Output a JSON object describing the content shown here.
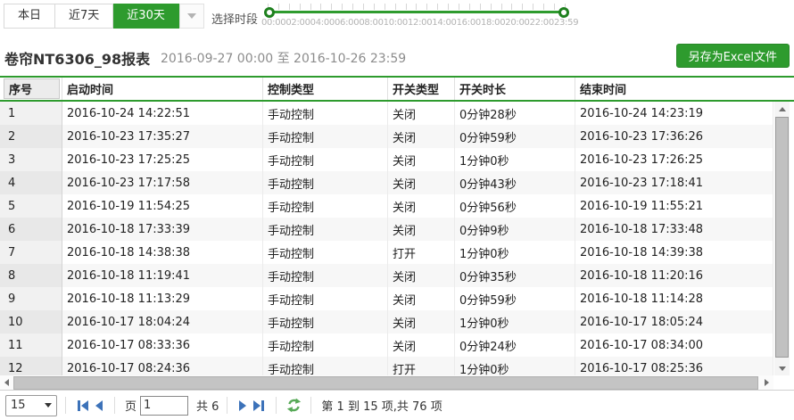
{
  "colors": {
    "accent_green": "#2e9b2e",
    "pager_arrow_blue": "#3c72b9",
    "refresh_green": "#57a957"
  },
  "toolbar": {
    "range_buttons": [
      {
        "label": "本日",
        "active": false
      },
      {
        "label": "近7天",
        "active": false
      },
      {
        "label": "近30天",
        "active": true
      }
    ],
    "time_label": "选择时段",
    "slider": {
      "start_value": "00:00",
      "end_value": "23:59",
      "tick_labels": [
        "00:00",
        "02:00",
        "04:00",
        "06:00",
        "08:00",
        "10:00",
        "12:00",
        "14:00",
        "16:00",
        "18:00",
        "20:00",
        "22:00",
        "23:59"
      ]
    }
  },
  "header": {
    "title": "卷帘NT6306_98报表",
    "date_range": "2016-09-27 00:00 至 2016-10-26 23:59",
    "excel_button_label": "另存为Excel文件"
  },
  "table": {
    "columns": [
      "序号",
      "启动时间",
      "控制类型",
      "开关类型",
      "开关时长",
      "结束时间"
    ],
    "rows": [
      [
        "1",
        "2016-10-24 14:22:51",
        "手动控制",
        "关闭",
        "0分钟28秒",
        "2016-10-24 14:23:19"
      ],
      [
        "2",
        "2016-10-23 17:35:27",
        "手动控制",
        "关闭",
        "0分钟59秒",
        "2016-10-23 17:36:26"
      ],
      [
        "3",
        "2016-10-23 17:25:25",
        "手动控制",
        "关闭",
        "1分钟0秒",
        "2016-10-23 17:26:25"
      ],
      [
        "4",
        "2016-10-23 17:17:58",
        "手动控制",
        "关闭",
        "0分钟43秒",
        "2016-10-23 17:18:41"
      ],
      [
        "5",
        "2016-10-19 11:54:25",
        "手动控制",
        "关闭",
        "0分钟56秒",
        "2016-10-19 11:55:21"
      ],
      [
        "6",
        "2016-10-18 17:33:39",
        "手动控制",
        "关闭",
        "0分钟9秒",
        "2016-10-18 17:33:48"
      ],
      [
        "7",
        "2016-10-18 14:38:38",
        "手动控制",
        "打开",
        "1分钟0秒",
        "2016-10-18 14:39:38"
      ],
      [
        "8",
        "2016-10-18 11:19:41",
        "手动控制",
        "关闭",
        "0分钟35秒",
        "2016-10-18 11:20:16"
      ],
      [
        "9",
        "2016-10-18 11:13:29",
        "手动控制",
        "关闭",
        "0分钟59秒",
        "2016-10-18 11:14:28"
      ],
      [
        "10",
        "2016-10-17 18:04:24",
        "手动控制",
        "关闭",
        "1分钟0秒",
        "2016-10-17 18:05:24"
      ],
      [
        "11",
        "2016-10-17 08:33:36",
        "手动控制",
        "关闭",
        "0分钟24秒",
        "2016-10-17 08:34:00"
      ],
      [
        "12",
        "2016-10-17 08:24:36",
        "手动控制",
        "打开",
        "1分钟0秒",
        "2016-10-17 08:25:36"
      ]
    ]
  },
  "pager": {
    "page_size": "15",
    "page_word": "页",
    "current_page": "1",
    "total_pages_label": "共 6",
    "info": "第 1 到 15 项,共 76 项"
  }
}
